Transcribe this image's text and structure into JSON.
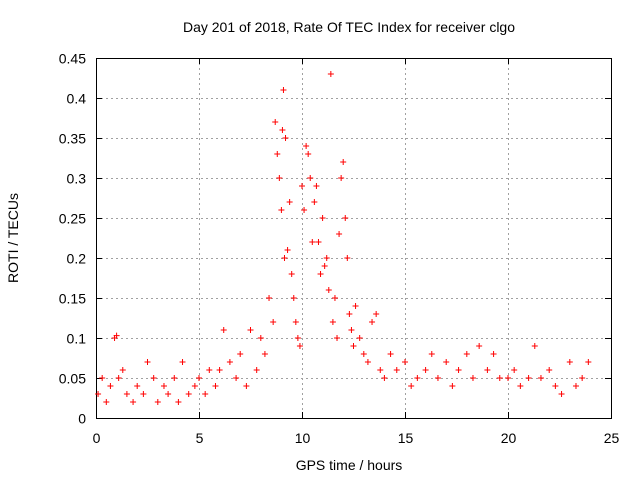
{
  "chart_data": {
    "type": "scatter",
    "title": "Day 201 of 2018, Rate Of TEC Index for receiver clgo",
    "xlabel": "GPS time / hours",
    "ylabel": "ROTI / TECUs",
    "xlim": [
      0,
      25
    ],
    "ylim": [
      0,
      0.45
    ],
    "x_ticks": [
      0,
      5,
      10,
      15,
      20,
      25
    ],
    "x_tick_labels": [
      "0",
      "5",
      "10",
      "15",
      "20",
      "25"
    ],
    "y_ticks": [
      0,
      0.05,
      0.1,
      0.15,
      0.2,
      0.25,
      0.3,
      0.35,
      0.4,
      0.45
    ],
    "y_tick_labels": [
      "0",
      "0.05",
      "0.1",
      "0.15",
      "0.2",
      "0.25",
      "0.3",
      "0.35",
      "0.4",
      "0.45"
    ],
    "grid": true,
    "marker": "+",
    "marker_color": "#ff0000",
    "series": [
      {
        "name": "ROTI",
        "x": [
          0.1,
          0.3,
          0.5,
          0.7,
          0.9,
          1.0,
          1.1,
          1.3,
          1.5,
          1.8,
          2.0,
          2.3,
          2.5,
          2.8,
          3.0,
          3.3,
          3.5,
          3.8,
          4.0,
          4.2,
          4.5,
          4.8,
          5.0,
          5.3,
          5.5,
          5.8,
          6.0,
          6.2,
          6.5,
          6.8,
          7.0,
          7.3,
          7.5,
          7.8,
          8.0,
          8.2,
          8.4,
          8.6,
          8.7,
          8.8,
          8.9,
          9.0,
          9.05,
          9.1,
          9.15,
          9.2,
          9.3,
          9.4,
          9.5,
          9.6,
          9.7,
          9.8,
          9.9,
          10.0,
          10.1,
          10.2,
          10.3,
          10.4,
          10.5,
          10.6,
          10.7,
          10.8,
          10.9,
          11.0,
          11.1,
          11.2,
          11.3,
          11.4,
          11.5,
          11.6,
          11.7,
          11.8,
          11.9,
          12.0,
          12.1,
          12.2,
          12.3,
          12.4,
          12.5,
          12.6,
          12.8,
          13.0,
          13.2,
          13.4,
          13.6,
          13.8,
          14.0,
          14.3,
          14.6,
          15.0,
          15.3,
          15.6,
          16.0,
          16.3,
          16.6,
          17.0,
          17.3,
          17.6,
          18.0,
          18.3,
          18.6,
          19.0,
          19.3,
          19.6,
          20.0,
          20.3,
          20.6,
          21.0,
          21.3,
          21.6,
          22.0,
          22.3,
          22.6,
          23.0,
          23.3,
          23.6,
          23.9
        ],
        "y": [
          0.03,
          0.05,
          0.02,
          0.04,
          0.1,
          0.103,
          0.05,
          0.06,
          0.03,
          0.02,
          0.04,
          0.03,
          0.07,
          0.05,
          0.02,
          0.04,
          0.03,
          0.05,
          0.02,
          0.07,
          0.03,
          0.04,
          0.05,
          0.03,
          0.06,
          0.04,
          0.06,
          0.11,
          0.07,
          0.05,
          0.08,
          0.04,
          0.11,
          0.06,
          0.1,
          0.08,
          0.15,
          0.12,
          0.37,
          0.33,
          0.3,
          0.26,
          0.36,
          0.41,
          0.2,
          0.35,
          0.21,
          0.27,
          0.18,
          0.15,
          0.12,
          0.1,
          0.09,
          0.29,
          0.26,
          0.34,
          0.33,
          0.3,
          0.22,
          0.27,
          0.29,
          0.22,
          0.18,
          0.25,
          0.19,
          0.2,
          0.16,
          0.43,
          0.12,
          0.15,
          0.1,
          0.23,
          0.3,
          0.32,
          0.25,
          0.2,
          0.13,
          0.11,
          0.09,
          0.14,
          0.1,
          0.08,
          0.07,
          0.12,
          0.13,
          0.06,
          0.05,
          0.08,
          0.06,
          0.07,
          0.04,
          0.05,
          0.06,
          0.08,
          0.05,
          0.07,
          0.04,
          0.06,
          0.08,
          0.05,
          0.09,
          0.06,
          0.08,
          0.05,
          0.05,
          0.06,
          0.04,
          0.05,
          0.09,
          0.05,
          0.06,
          0.04,
          0.03,
          0.07,
          0.04,
          0.05,
          0.07
        ]
      }
    ]
  }
}
